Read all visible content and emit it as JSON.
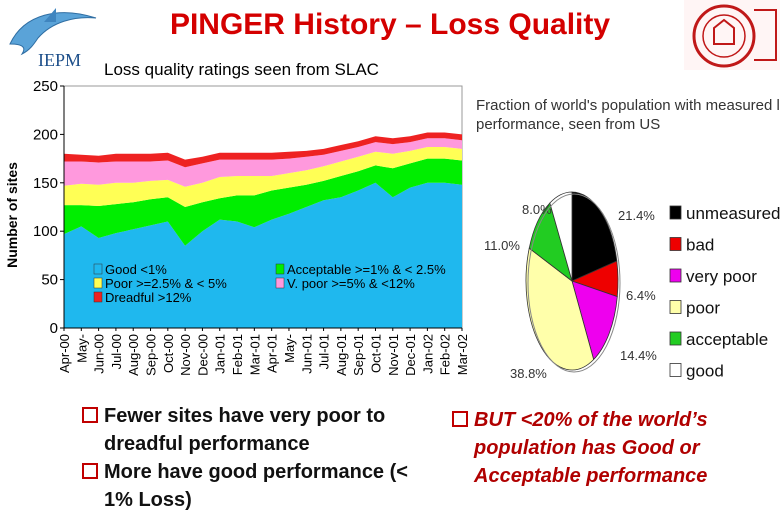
{
  "header": {
    "title": "PINGER History – Loss Quality",
    "subtitle": "Loss quality ratings seen from SLAC",
    "logo_text": "IEPM"
  },
  "bullets": [
    "Fewer sites have very poor to dreadful performance",
    "More have good performance (< 1% Loss)"
  ],
  "right_bullet": "BUT <20% of the world’s population has Good or Acceptable performance",
  "chart_data": [
    {
      "type": "area",
      "title": "",
      "xlabel": "",
      "ylabel": "Number of sites",
      "ylim": [
        0,
        250
      ],
      "yticks": [
        0,
        50,
        100,
        150,
        200,
        250
      ],
      "x": [
        "Apr-00",
        "May-00",
        "Jun-00",
        "Jul-00",
        "Aug-00",
        "Sep-00",
        "Oct-00",
        "Nov-00",
        "Dec-00",
        "Jan-01",
        "Feb-01",
        "Mar-01",
        "Apr-01",
        "May-01",
        "Jun-01",
        "Jul-01",
        "Aug-01",
        "Sep-01",
        "Oct-01",
        "Nov-01",
        "Dec-01",
        "Jan-02",
        "Feb-02",
        "Mar-02"
      ],
      "x_tick_labels": [
        "Apr-00",
        "May-",
        "Jun-00",
        "Jul-00",
        "Aug-00",
        "Sep-00",
        "Oct-00",
        "Nov-00",
        "Dec-00",
        "Jan-01",
        "Feb-01",
        "Mar-01",
        "Apr-01",
        "May-",
        "Jun-01",
        "Jul-01",
        "Aug-01",
        "Sep-01",
        "Oct-01",
        "Nov-01",
        "Dec-01",
        "Jan-02",
        "Feb-02",
        "Mar-02"
      ],
      "legend_position": "bottom-inside",
      "grid": false,
      "series": [
        {
          "name": "Good <1%",
          "color": "#1fb8ee",
          "values": [
            97,
            105,
            93,
            98,
            102,
            106,
            110,
            85,
            100,
            112,
            110,
            104,
            112,
            118,
            125,
            132,
            135,
            142,
            150,
            135,
            145,
            150,
            150,
            148
          ]
        },
        {
          "name": "Acceptable >=1% & < 2.5%",
          "color": "#00ee00",
          "values": [
            30,
            22,
            33,
            30,
            28,
            27,
            25,
            40,
            30,
            22,
            27,
            33,
            30,
            27,
            23,
            20,
            22,
            20,
            18,
            30,
            25,
            25,
            25,
            25
          ]
        },
        {
          "name": "Poor >=2.5% & < 5%",
          "color": "#ffff55",
          "values": [
            20,
            22,
            22,
            22,
            20,
            19,
            18,
            21,
            20,
            22,
            20,
            20,
            15,
            15,
            15,
            15,
            15,
            15,
            14,
            15,
            13,
            12,
            12,
            12
          ]
        },
        {
          "name": "V. poor >=5% & <12%",
          "color": "#ff99dd",
          "values": [
            25,
            23,
            23,
            22,
            22,
            20,
            20,
            20,
            20,
            18,
            17,
            17,
            17,
            15,
            14,
            12,
            11,
            10,
            10,
            10,
            9,
            9,
            9,
            9
          ]
        },
        {
          "name": "Dreadful >12%",
          "color": "#ee2222",
          "values": [
            8,
            7,
            7,
            8,
            8,
            8,
            8,
            8,
            7,
            7,
            7,
            7,
            7,
            7,
            6,
            6,
            6,
            6,
            6,
            6,
            6,
            6,
            6,
            6
          ]
        }
      ]
    },
    {
      "type": "pie",
      "title": "Fraction of world's population with measured loss performance, seen from US",
      "categories": [
        "unmeasured",
        "bad",
        "very poor",
        "poor",
        "acceptable",
        "good"
      ],
      "values": [
        21.4,
        6.4,
        14.4,
        38.8,
        11.0,
        8.0
      ],
      "value_labels": [
        "21.4%",
        "6.4%",
        "14.4%",
        "38.8%",
        "11.0%",
        "8.0%"
      ],
      "colors": [
        "#000000",
        "#ee0000",
        "#ee00ee",
        "#ffffaa",
        "#22cc22",
        "#ffffff"
      ],
      "legend_position": "right"
    }
  ]
}
